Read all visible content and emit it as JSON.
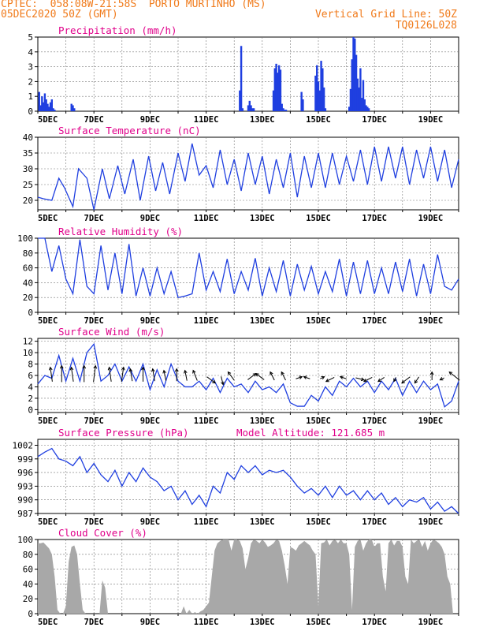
{
  "header": {
    "line1": "CPTEC:  058:08W-21:58S  PORTO MURTINHO (MS)",
    "line2_left": "05DEC2020 50Z (GMT)",
    "line2_right": "Vertical Grid Line: 50Z",
    "line3_right": "TQ0126L028"
  },
  "colors": {
    "header_text": "#f07a1a",
    "panel_title": "#e0008a",
    "series_line": "#1f3fe0",
    "bar_fill": "#1f3fe0",
    "cloud_fill": "#a8a8a8",
    "axis": "#000000",
    "grid": "#777777"
  },
  "chart_data": [
    {
      "id": "precip",
      "type": "bar",
      "title": "Precipitation (mm/h)",
      "ylim": [
        0,
        5
      ],
      "yticks": [
        0,
        1,
        2,
        3,
        4,
        5
      ],
      "xlim_days": [
        0,
        15
      ],
      "xticks": [
        "5DEC",
        "7DEC",
        "9DEC",
        "11DEC",
        "13DEC",
        "15DEC",
        "17DEC",
        "19DEC"
      ],
      "grid": true,
      "x_days": [
        0.05,
        0.1,
        0.15,
        0.2,
        0.25,
        0.3,
        0.35,
        0.4,
        0.45,
        0.5,
        0.55,
        0.6,
        1.2,
        1.25,
        1.3,
        7.2,
        7.25,
        7.3,
        7.5,
        7.55,
        7.6,
        7.65,
        7.7,
        8.4,
        8.45,
        8.5,
        8.55,
        8.6,
        8.65,
        8.7,
        8.75,
        8.8,
        8.85,
        9.4,
        9.45,
        9.9,
        9.95,
        10.0,
        10.05,
        10.1,
        10.15,
        10.2,
        10.25,
        11.1,
        11.15,
        11.2,
        11.25,
        11.3,
        11.35,
        11.4,
        11.45,
        11.5,
        11.55,
        11.6,
        11.65,
        11.7,
        11.75,
        11.8
      ],
      "values": [
        1.3,
        0.4,
        1.0,
        0.6,
        1.2,
        0.8,
        0.5,
        0.3,
        0.6,
        0.8,
        0.2,
        0.1,
        0.5,
        0.4,
        0.2,
        1.4,
        4.4,
        0.2,
        0.4,
        0.7,
        0.4,
        0.2,
        0.2,
        1.4,
        2.9,
        3.2,
        2.6,
        3.1,
        2.8,
        0.5,
        0.2,
        0.1,
        0.1,
        1.3,
        0.8,
        2.4,
        3.1,
        2.0,
        1.4,
        3.4,
        2.9,
        1.6,
        0.2,
        0.3,
        1.5,
        3.5,
        5.0,
        4.9,
        3.8,
        2.2,
        1.6,
        2.9,
        0.9,
        2.1,
        0.8,
        0.4,
        0.3,
        0.2
      ]
    },
    {
      "id": "temp",
      "type": "line",
      "title": "Surface Temperature (nC)",
      "ylim": [
        17,
        40
      ],
      "yticks": [
        20,
        25,
        30,
        35,
        40
      ],
      "xlim_days": [
        0,
        15
      ],
      "xticks": [
        "5DEC",
        "7DEC",
        "9DEC",
        "11DEC",
        "13DEC",
        "15DEC",
        "17DEC",
        "19DEC"
      ],
      "grid": true,
      "x_days": [
        0,
        0.2,
        0.5,
        0.75,
        0.95,
        1.25,
        1.45,
        1.75,
        2.0,
        2.3,
        2.55,
        2.85,
        3.1,
        3.4,
        3.65,
        3.95,
        4.2,
        4.45,
        4.7,
        5.0,
        5.25,
        5.5,
        5.75,
        6.0,
        6.25,
        6.5,
        6.75,
        7.0,
        7.25,
        7.5,
        7.75,
        8.0,
        8.25,
        8.5,
        8.75,
        9.0,
        9.25,
        9.5,
        9.75,
        10.0,
        10.25,
        10.5,
        10.75,
        11.0,
        11.25,
        11.5,
        11.75,
        12.0,
        12.25,
        12.5,
        12.75,
        13.0,
        13.25,
        13.5,
        13.75,
        14.0,
        14.25,
        14.5,
        14.75,
        15.0
      ],
      "values": [
        21,
        20.5,
        20,
        27,
        24,
        18,
        30,
        27,
        17,
        30,
        20.5,
        31,
        22,
        33,
        20,
        34,
        23,
        32,
        22,
        35,
        26,
        38,
        28,
        31,
        24,
        36,
        25,
        33,
        23,
        35,
        25,
        34,
        22,
        33,
        24,
        35,
        21,
        34,
        24,
        35,
        24,
        35,
        25,
        34,
        26,
        36,
        25,
        37,
        26,
        37,
        27,
        37,
        25,
        36,
        27,
        37,
        26,
        36,
        24,
        33
      ]
    },
    {
      "id": "rh",
      "type": "line",
      "title": "Relative Humidity (%)",
      "ylim": [
        0,
        100
      ],
      "yticks": [
        0,
        20,
        40,
        60,
        80,
        100
      ],
      "xlim_days": [
        0,
        15
      ],
      "xticks": [
        "5DEC",
        "7DEC",
        "9DEC",
        "11DEC",
        "13DEC",
        "15DEC",
        "17DEC",
        "19DEC"
      ],
      "grid": true,
      "x_days": [
        0,
        0.25,
        0.5,
        0.75,
        1.0,
        1.25,
        1.5,
        1.75,
        2.0,
        2.25,
        2.5,
        2.75,
        3.0,
        3.25,
        3.5,
        3.75,
        4.0,
        4.25,
        4.5,
        4.75,
        5.0,
        5.25,
        5.5,
        5.75,
        6.0,
        6.25,
        6.5,
        6.75,
        7.0,
        7.25,
        7.5,
        7.75,
        8.0,
        8.25,
        8.5,
        8.75,
        9.0,
        9.25,
        9.5,
        9.75,
        10.0,
        10.25,
        10.5,
        10.75,
        11.0,
        11.25,
        11.5,
        11.75,
        12.0,
        12.25,
        12.5,
        12.75,
        13.0,
        13.25,
        13.5,
        13.75,
        14.0,
        14.25,
        14.5,
        14.75,
        15.0
      ],
      "values": [
        100,
        100,
        55,
        90,
        45,
        25,
        98,
        35,
        25,
        90,
        30,
        80,
        25,
        92,
        22,
        60,
        22,
        60,
        25,
        55,
        20,
        22,
        25,
        80,
        30,
        55,
        28,
        72,
        25,
        55,
        30,
        73,
        22,
        60,
        28,
        70,
        22,
        65,
        30,
        62,
        25,
        55,
        28,
        72,
        22,
        68,
        25,
        70,
        25,
        60,
        25,
        68,
        28,
        72,
        22,
        65,
        25,
        78,
        35,
        30,
        45
      ]
    },
    {
      "id": "wind",
      "type": "line",
      "title": "Surface Wind (m/s)",
      "ylim": [
        -0.5,
        12.5
      ],
      "yticks": [
        0,
        2,
        4,
        6,
        8,
        10,
        12
      ],
      "xlim_days": [
        0,
        15
      ],
      "xticks": [
        "5DEC",
        "7DEC",
        "9DEC",
        "11DEC",
        "13DEC",
        "15DEC",
        "17DEC",
        "19DEC"
      ],
      "grid": true,
      "x_days": [
        0,
        0.25,
        0.5,
        0.75,
        1.0,
        1.25,
        1.5,
        1.75,
        2.0,
        2.25,
        2.5,
        2.75,
        3.0,
        3.25,
        3.5,
        3.75,
        4.0,
        4.25,
        4.5,
        4.75,
        5.0,
        5.25,
        5.5,
        5.75,
        6.0,
        6.25,
        6.5,
        6.75,
        7.0,
        7.25,
        7.5,
        7.75,
        8.0,
        8.25,
        8.5,
        8.75,
        9.0,
        9.25,
        9.5,
        9.75,
        10.0,
        10.25,
        10.5,
        10.75,
        11.0,
        11.25,
        11.5,
        11.75,
        12.0,
        12.25,
        12.5,
        12.75,
        13.0,
        13.25,
        13.5,
        13.75,
        14.0,
        14.25,
        14.5,
        14.75,
        15.0
      ],
      "values": [
        4.5,
        6,
        5.5,
        9.5,
        5,
        9,
        5,
        10,
        11.5,
        5,
        6,
        8,
        5,
        7.5,
        5,
        8,
        3.5,
        7,
        4,
        8,
        5,
        4,
        4,
        5,
        3.5,
        5.5,
        3,
        5.5,
        4,
        4.5,
        3,
        5,
        3.5,
        4,
        3,
        4.5,
        1.2,
        0.6,
        0.6,
        2.5,
        1.5,
        4,
        2.5,
        5,
        4,
        5.5,
        4,
        5,
        3,
        5,
        3.5,
        5.5,
        2.5,
        5,
        3,
        5,
        3.5,
        4.5,
        0.5,
        1.5,
        5
      ],
      "vectors": [
        {
          "x_day": 0.5,
          "u": -1,
          "v": 7
        },
        {
          "x_day": 0.85,
          "u": 0,
          "v": 8
        },
        {
          "x_day": 1.25,
          "u": -1,
          "v": 7
        },
        {
          "x_day": 1.65,
          "u": 0,
          "v": 8
        },
        {
          "x_day": 2.0,
          "u": 1,
          "v": 8
        },
        {
          "x_day": 2.6,
          "u": -1,
          "v": 7
        },
        {
          "x_day": 3.0,
          "u": 1,
          "v": 7
        },
        {
          "x_day": 3.35,
          "u": -1,
          "v": 6
        },
        {
          "x_day": 3.75,
          "u": 0,
          "v": 7
        },
        {
          "x_day": 4.15,
          "u": -1,
          "v": 6
        },
        {
          "x_day": 4.55,
          "u": -1,
          "v": 5
        },
        {
          "x_day": 4.95,
          "u": 0,
          "v": 6
        },
        {
          "x_day": 5.3,
          "u": -1,
          "v": 5
        },
        {
          "x_day": 5.65,
          "u": -2,
          "v": 5
        },
        {
          "x_day": 6.1,
          "u": 4,
          "v": -3
        },
        {
          "x_day": 6.55,
          "u": 1,
          "v": -4
        },
        {
          "x_day": 6.95,
          "u": -3,
          "v": 4
        },
        {
          "x_day": 7.55,
          "u": 4,
          "v": 3
        },
        {
          "x_day": 8.0,
          "u": -4,
          "v": 3
        },
        {
          "x_day": 8.4,
          "u": -2,
          "v": 4
        },
        {
          "x_day": 8.8,
          "u": -2,
          "v": 4
        },
        {
          "x_day": 9.25,
          "u": 3,
          "v": 1
        },
        {
          "x_day": 9.65,
          "u": -3,
          "v": 1
        },
        {
          "x_day": 10.1,
          "u": 2,
          "v": 1
        },
        {
          "x_day": 10.5,
          "u": -4,
          "v": -2
        },
        {
          "x_day": 10.95,
          "u": -3,
          "v": 1
        },
        {
          "x_day": 11.4,
          "u": 4,
          "v": -1
        },
        {
          "x_day": 11.85,
          "u": -4,
          "v": -2
        },
        {
          "x_day": 12.3,
          "u": -3,
          "v": -2
        },
        {
          "x_day": 12.75,
          "u": -1,
          "v": -2
        },
        {
          "x_day": 13.2,
          "u": -4,
          "v": -3
        },
        {
          "x_day": 13.55,
          "u": -2,
          "v": -3
        },
        {
          "x_day": 14.05,
          "u": 0,
          "v": 4
        },
        {
          "x_day": 14.45,
          "u": -2,
          "v": -1
        },
        {
          "x_day": 14.95,
          "u": -5,
          "v": 4
        }
      ]
    },
    {
      "id": "pres",
      "type": "line",
      "title": "Surface Pressure (hPa)",
      "annotation": "Model Altitude: 121.685 m",
      "ylim": [
        987,
        1003.3
      ],
      "yticks": [
        987,
        990,
        993,
        996,
        999,
        1002
      ],
      "xlim_days": [
        0,
        15
      ],
      "xticks": [
        "5DEC",
        "7DEC",
        "9DEC",
        "11DEC",
        "13DEC",
        "15DEC",
        "17DEC",
        "19DEC"
      ],
      "grid": true,
      "x_days": [
        0,
        0.25,
        0.5,
        0.75,
        1.0,
        1.25,
        1.5,
        1.75,
        2.0,
        2.25,
        2.5,
        2.75,
        3.0,
        3.25,
        3.5,
        3.75,
        4.0,
        4.25,
        4.5,
        4.75,
        5.0,
        5.25,
        5.5,
        5.75,
        6.0,
        6.25,
        6.5,
        6.75,
        7.0,
        7.25,
        7.5,
        7.75,
        8.0,
        8.25,
        8.5,
        8.75,
        9.0,
        9.25,
        9.5,
        9.75,
        10.0,
        10.25,
        10.5,
        10.75,
        11.0,
        11.25,
        11.5,
        11.75,
        12.0,
        12.25,
        12.5,
        12.75,
        13.0,
        13.25,
        13.5,
        13.75,
        14.0,
        14.25,
        14.5,
        14.75,
        15.0
      ],
      "values": [
        999.5,
        1000.5,
        1001.3,
        999,
        998.5,
        997.5,
        999.5,
        996,
        998,
        995.5,
        994,
        996.5,
        993,
        996,
        994,
        997,
        995,
        994,
        992,
        993,
        990,
        992,
        989,
        991,
        988.5,
        993,
        991.5,
        996,
        994.5,
        997.5,
        996,
        997.5,
        995.5,
        996.5,
        996,
        996.5,
        995,
        993,
        991.5,
        992.5,
        991,
        993,
        990.5,
        993,
        991,
        992,
        990,
        992,
        990,
        991.5,
        989,
        990.5,
        988.5,
        990,
        989.5,
        990.5,
        988,
        989.5,
        987.5,
        988.5,
        986.5
      ]
    },
    {
      "id": "cloud",
      "type": "area",
      "title": "Cloud Cover (%)",
      "ylim": [
        0,
        100
      ],
      "yticks": [
        0,
        20,
        40,
        60,
        80,
        100
      ],
      "xlim_days": [
        0,
        15
      ],
      "xticks": [
        "5DEC",
        "7DEC",
        "9DEC",
        "11DEC",
        "13DEC",
        "15DEC",
        "17DEC",
        "19DEC"
      ],
      "grid": true,
      "x_days": [
        0,
        0.1,
        0.2,
        0.3,
        0.4,
        0.5,
        0.6,
        0.7,
        0.8,
        0.9,
        1.0,
        1.1,
        1.2,
        1.3,
        1.4,
        1.5,
        1.6,
        1.7,
        1.8,
        1.9,
        2.0,
        2.1,
        2.2,
        2.3,
        2.4,
        2.5,
        2.6,
        2.7,
        2.8,
        2.9,
        3.0,
        3.1,
        3.2,
        3.3,
        3.4,
        3.5,
        3.6,
        3.7,
        3.8,
        3.9,
        4.0,
        4.1,
        4.2,
        4.3,
        4.4,
        4.5,
        4.6,
        4.7,
        4.8,
        4.9,
        5.0,
        5.1,
        5.2,
        5.3,
        5.4,
        5.5,
        5.6,
        5.7,
        5.8,
        5.9,
        6.0,
        6.1,
        6.2,
        6.3,
        6.4,
        6.5,
        6.6,
        6.7,
        6.8,
        6.9,
        7.0,
        7.1,
        7.2,
        7.3,
        7.4,
        7.5,
        7.6,
        7.7,
        7.8,
        7.9,
        8.0,
        8.1,
        8.2,
        8.3,
        8.4,
        8.5,
        8.6,
        8.7,
        8.8,
        8.9,
        9.0,
        9.1,
        9.2,
        9.3,
        9.4,
        9.5,
        9.6,
        9.7,
        9.8,
        9.9,
        10.0,
        10.1,
        10.2,
        10.3,
        10.4,
        10.5,
        10.6,
        10.7,
        10.8,
        10.9,
        11.0,
        11.1,
        11.2,
        11.3,
        11.4,
        11.5,
        11.6,
        11.7,
        11.8,
        11.9,
        12.0,
        12.1,
        12.2,
        12.3,
        12.4,
        12.5,
        12.6,
        12.7,
        12.8,
        12.9,
        13.0,
        13.1,
        13.2,
        13.3,
        13.4,
        13.5,
        13.6,
        13.7,
        13.8,
        13.9,
        14.0,
        14.1,
        14.2,
        14.3,
        14.4,
        14.5,
        14.6,
        14.7,
        14.8,
        14.9,
        15.0
      ],
      "values": [
        95,
        95,
        96,
        92,
        88,
        80,
        50,
        5,
        0,
        0,
        10,
        70,
        90,
        92,
        80,
        40,
        5,
        0,
        0,
        0,
        0,
        0,
        0,
        45,
        35,
        0,
        0,
        0,
        0,
        0,
        0,
        0,
        0,
        0,
        0,
        0,
        0,
        0,
        0,
        0,
        0,
        0,
        0,
        0,
        0,
        0,
        0,
        0,
        0,
        0,
        0,
        0,
        10,
        0,
        5,
        0,
        2,
        0,
        3,
        5,
        10,
        15,
        50,
        85,
        95,
        98,
        100,
        100,
        100,
        85,
        100,
        100,
        98,
        88,
        60,
        75,
        95,
        100,
        98,
        95,
        100,
        96,
        90,
        92,
        95,
        100,
        98,
        85,
        65,
        40,
        90,
        88,
        85,
        92,
        95,
        98,
        95,
        92,
        85,
        80,
        10,
        95,
        96,
        100,
        92,
        98,
        100,
        95,
        100,
        95,
        95,
        80,
        5,
        90,
        98,
        100,
        85,
        95,
        100,
        100,
        90,
        95,
        95,
        50,
        30,
        95,
        100,
        92,
        98,
        98,
        90,
        50,
        40,
        100,
        95,
        98,
        100,
        90,
        98,
        85,
        95,
        100,
        98,
        95,
        90,
        80,
        50,
        40,
        0,
        0,
        0
      ]
    }
  ]
}
